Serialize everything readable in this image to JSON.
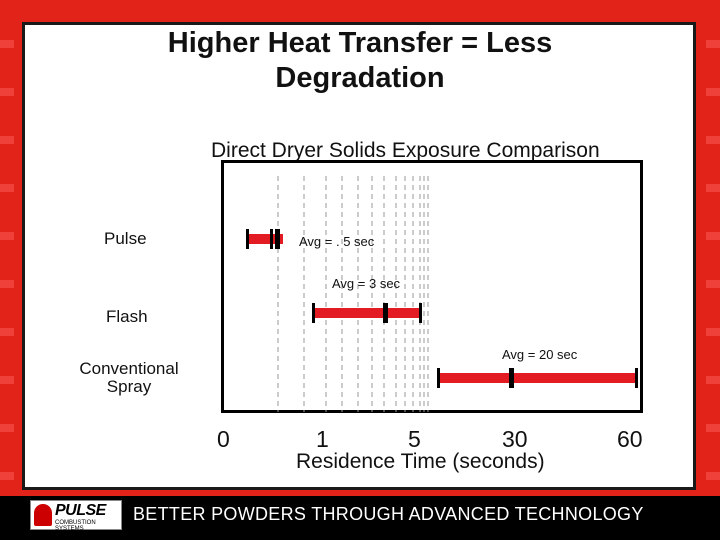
{
  "theme": {
    "background": "#e2231a",
    "bar_color": "#e31b23",
    "tagline_color": "#ffffff"
  },
  "slide": {
    "title_line1": "Higher Heat Transfer = Less",
    "title_line2": "Degradation",
    "footer_logo_text": "PULSE",
    "footer_logo_subtext": "COMBUSTION SYSTEMS",
    "footer_tagline": "BETTER POWDERS THROUGH ADVANCED TECHNOLOGY"
  },
  "chart_data": {
    "type": "bar",
    "title": "Direct Dryer Solids Exposure Comparison",
    "xlabel": "Residence Time (seconds)",
    "x_scale": "log-like",
    "x_tick_labels": [
      "0",
      "1",
      "5",
      "30",
      "60"
    ],
    "grid": "vertical dashed",
    "categories": [
      {
        "label_lines": [
          "Pulse"
        ],
        "annotation": "Avg = . 5 sec",
        "avg_seconds": 0.5
      },
      {
        "label_lines": [
          "Flash"
        ],
        "annotation": "Avg = 3 sec",
        "avg_seconds": 3
      },
      {
        "label_lines": [
          "Conventional",
          "Spray"
        ],
        "annotation": "Avg = 20 sec",
        "avg_seconds": 20
      }
    ]
  }
}
